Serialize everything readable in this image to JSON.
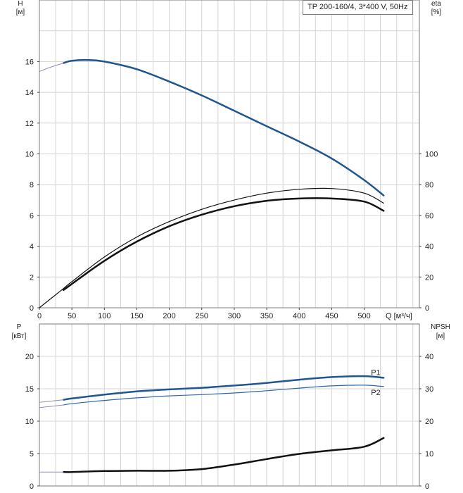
{
  "title": "TP 200-160/4, 3*400 V, 50Hz",
  "colors": {
    "blue": "#1f5690",
    "blue_light": "#2d68a8",
    "black": "#111111",
    "thin_ext": "#8f8fb0"
  },
  "top_axes": {
    "left_title": [
      "H",
      "[м]"
    ],
    "right_title": [
      "eta",
      "[%]"
    ],
    "x_title": "Q [м³/ч]",
    "x_ticks": [
      "0",
      "50",
      "100",
      "150",
      "200",
      "250",
      "300",
      "350",
      "400",
      "450",
      "500"
    ],
    "left_ticks": [
      "0",
      "2",
      "4",
      "6",
      "8",
      "10",
      "12",
      "14",
      "16"
    ],
    "right_ticks": [
      "0",
      "20",
      "40",
      "60",
      "80",
      "100"
    ]
  },
  "bottom_axes": {
    "left_title": [
      "P",
      "[кВт]"
    ],
    "right_title": [
      "NPSH",
      "[м]"
    ],
    "left_ticks": [
      "0",
      "5",
      "10",
      "15",
      "20"
    ],
    "right_ticks": [
      "0",
      "10",
      "20",
      "30",
      "40"
    ]
  },
  "chart_data": [
    {
      "type": "line",
      "title": "TP 200-160/4, 3*400 V, 50Hz",
      "xlabel": "Q [м³/ч]",
      "ylabel": "H [м]",
      "y2label": "eta [%]",
      "xlim": [
        0,
        585
      ],
      "ylim": [
        0,
        20
      ],
      "y2lim": [
        0,
        200
      ],
      "grid": true,
      "series": [
        {
          "axis": "left",
          "color": "#1f5690",
          "width": 2.5,
          "x": [
            37,
            50,
            75,
            100,
            150,
            200,
            250,
            300,
            350,
            400,
            450,
            500,
            530
          ],
          "y": [
            15.9,
            16.05,
            16.1,
            16.0,
            15.5,
            14.7,
            13.8,
            12.8,
            11.8,
            10.8,
            9.7,
            8.3,
            7.3
          ]
        },
        {
          "axis": "left",
          "color": "#8f8fb0",
          "width": 1,
          "x": [
            0,
            15,
            37
          ],
          "y": [
            15.35,
            15.6,
            15.9
          ]
        },
        {
          "axis": "right",
          "color": "#111111",
          "width": 1.2,
          "x": [
            0,
            37,
            50,
            100,
            150,
            200,
            250,
            300,
            350,
            400,
            450,
            500,
            530
          ],
          "y": [
            0,
            12.5,
            17,
            33,
            46,
            56,
            64,
            70,
            74.5,
            77,
            77.5,
            74.5,
            68
          ]
        },
        {
          "axis": "right",
          "color": "#111111",
          "width": 2.5,
          "x": [
            37,
            50,
            100,
            150,
            200,
            250,
            300,
            350,
            400,
            450,
            500,
            530
          ],
          "y": [
            11.5,
            15.5,
            30.5,
            43,
            53,
            60.5,
            66,
            69.5,
            71,
            71,
            69,
            63
          ]
        }
      ]
    },
    {
      "type": "line",
      "ylabel": "P [кВт]",
      "y2label": "NPSH [м]",
      "xlim": [
        0,
        585
      ],
      "ylim": [
        0,
        25
      ],
      "y2lim": [
        0,
        50
      ],
      "grid": true,
      "series": [
        {
          "name": "P1",
          "axis": "left",
          "color": "#1f5690",
          "width": 2.5,
          "x": [
            37,
            50,
            100,
            150,
            200,
            250,
            300,
            350,
            400,
            450,
            500,
            530
          ],
          "y": [
            13.3,
            13.5,
            14.1,
            14.6,
            14.9,
            15.15,
            15.5,
            15.9,
            16.4,
            16.8,
            16.95,
            16.7
          ]
        },
        {
          "axis": "left",
          "color": "#8f8fb0",
          "width": 1,
          "x": [
            0,
            37
          ],
          "y": [
            12.9,
            13.3
          ]
        },
        {
          "name": "P2",
          "axis": "left",
          "color": "#2d68a8",
          "width": 1.2,
          "x": [
            37,
            50,
            100,
            150,
            200,
            250,
            300,
            350,
            400,
            450,
            500,
            530
          ],
          "y": [
            12.5,
            12.7,
            13.2,
            13.6,
            13.9,
            14.1,
            14.35,
            14.7,
            15.1,
            15.45,
            15.55,
            15.35
          ]
        },
        {
          "axis": "left",
          "color": "#8f8fb0",
          "width": 1,
          "x": [
            0,
            37
          ],
          "y": [
            12.1,
            12.5
          ]
        },
        {
          "axis": "right",
          "color": "#111111",
          "width": 2.5,
          "x": [
            37,
            50,
            100,
            150,
            200,
            250,
            300,
            350,
            400,
            450,
            500,
            530
          ],
          "y": [
            4.3,
            4.3,
            4.6,
            4.7,
            4.7,
            5.2,
            6.6,
            8.3,
            9.9,
            11.0,
            12.1,
            14.8
          ]
        },
        {
          "axis": "right",
          "color": "#8f8fb0",
          "width": 1,
          "x": [
            0,
            37
          ],
          "y": [
            4.3,
            4.3
          ]
        }
      ]
    }
  ]
}
